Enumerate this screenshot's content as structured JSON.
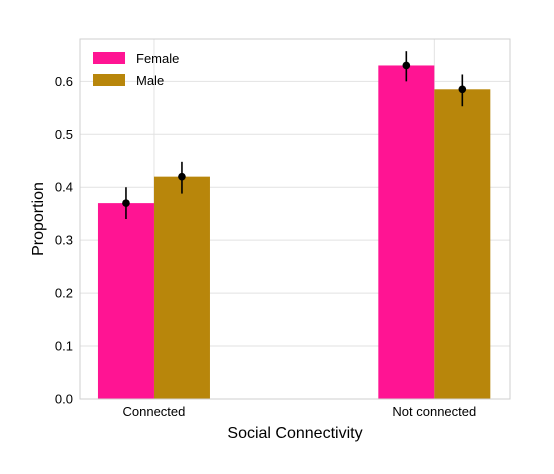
{
  "chart_data": {
    "type": "bar",
    "xlabel": "Social Connectivity",
    "ylabel": "Proportion",
    "categories": [
      "Connected",
      "Not connected"
    ],
    "ylim": [
      0.0,
      0.68
    ],
    "yticks": [
      0.0,
      0.1,
      0.2,
      0.3,
      0.4,
      0.5,
      0.6
    ],
    "ytick_labels": [
      "0.0",
      "0.1",
      "0.2",
      "0.3",
      "0.4",
      "0.5",
      "0.6"
    ],
    "grid": true,
    "legend_position": "top-left",
    "series": [
      {
        "name": "Female",
        "color": "#ff1493",
        "values": [
          0.37,
          0.63
        ],
        "err_low": [
          0.34,
          0.6
        ],
        "err_high": [
          0.4,
          0.657
        ]
      },
      {
        "name": "Male",
        "color": "#b8860b",
        "values": [
          0.42,
          0.585
        ],
        "err_low": [
          0.388,
          0.553
        ],
        "err_high": [
          0.448,
          0.613
        ]
      }
    ]
  }
}
